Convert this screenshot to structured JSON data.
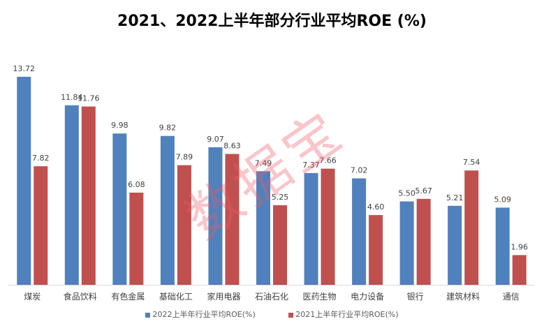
{
  "chart_data": {
    "type": "bar",
    "title": "2021、2022上半年部分行业平均ROE (%)",
    "categories": [
      "煤炭",
      "食品饮料",
      "有色金属",
      "基础化工",
      "家用电器",
      "石油石化",
      "医药生物",
      "电力设备",
      "银行",
      "建筑材料",
      "通信"
    ],
    "series": [
      {
        "name": "2022上半年行业平均ROE(%)",
        "color": "#4F81BD",
        "values": [
          13.72,
          11.84,
          9.98,
          9.82,
          9.07,
          7.49,
          7.37,
          7.02,
          5.5,
          5.21,
          5.09
        ]
      },
      {
        "name": "2021上半年行业平均ROE(%)",
        "color": "#C0504D",
        "values": [
          7.82,
          11.76,
          6.08,
          7.89,
          8.63,
          5.25,
          7.66,
          4.6,
          5.67,
          7.54,
          1.96
        ]
      }
    ],
    "xlabel": "",
    "ylabel": "",
    "ylim": [
      0,
      14.5
    ],
    "grid": false,
    "legend": "bottom"
  },
  "watermark": "数据宝"
}
